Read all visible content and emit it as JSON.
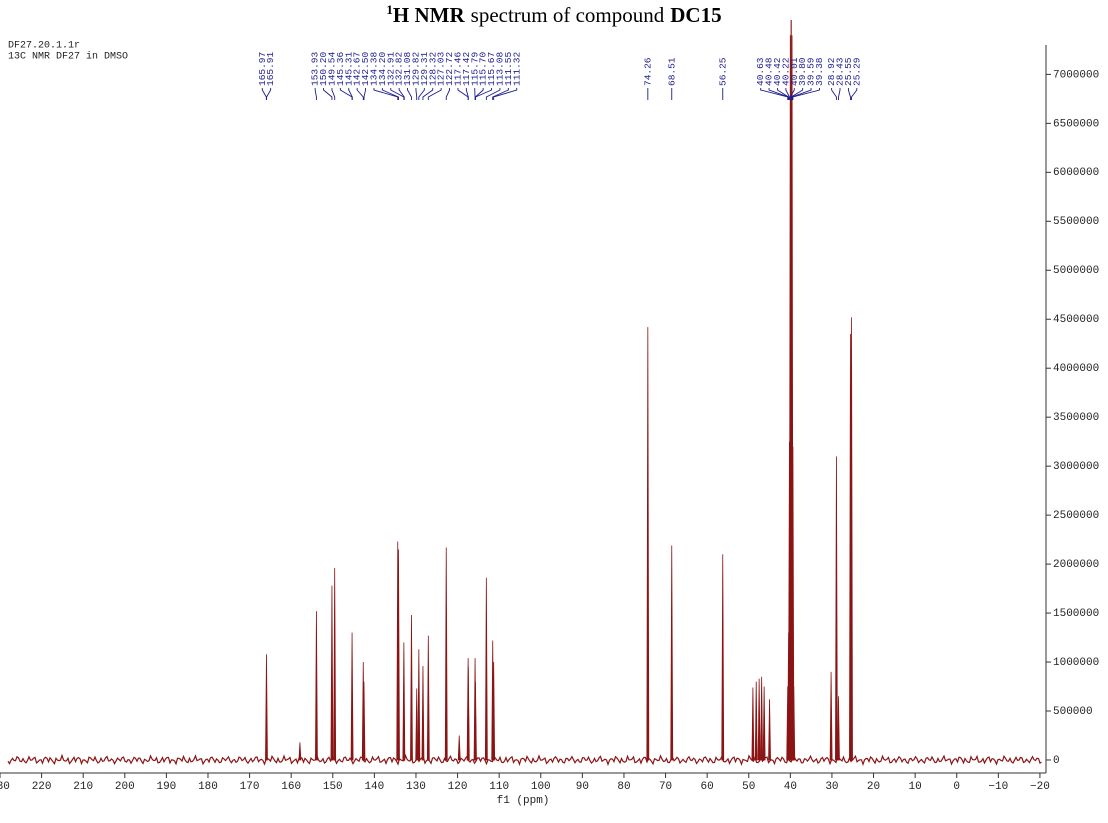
{
  "chart_data": {
    "type": "nmr",
    "title_parts": [
      "1",
      "H NMR",
      "spectrum of compound",
      "DC15"
    ],
    "header": [
      "DF27.20.1.1r",
      "13C NMR DF27 in DMSO"
    ],
    "xlabel": "f1 (ppm)",
    "color": "#8b1414",
    "label_color": "#1c1c8c",
    "xlim": [
      230,
      -20.5
    ],
    "ylim": [
      -133000,
      7300000
    ],
    "xticks": [
      230,
      220,
      210,
      200,
      190,
      180,
      170,
      160,
      150,
      140,
      130,
      120,
      110,
      100,
      90,
      80,
      70,
      60,
      50,
      40,
      30,
      20,
      10,
      0,
      {
        "value": -10,
        "label": "−10"
      },
      {
        "value": -20,
        "label": "−20"
      }
    ],
    "yticks": [
      0,
      500000,
      1000000,
      1500000,
      2000000,
      2500000,
      3000000,
      3500000,
      4000000,
      4500000,
      5000000,
      5500000,
      6000000,
      6500000,
      7000000
    ],
    "peak_labels": [
      {
        "value": 165.97,
        "label": "165.97"
      },
      {
        "value": 165.91,
        "label": "165.91"
      },
      {
        "value": 153.93,
        "label": "153.93"
      },
      {
        "value": 150.2,
        "label": "150.20"
      },
      {
        "value": 149.54,
        "label": "149.54"
      },
      {
        "value": 145.36,
        "label": "145.36"
      },
      {
        "value": 145.31,
        "label": "145.31"
      },
      {
        "value": 142.67,
        "label": "142.67"
      },
      {
        "value": 142.5,
        "label": "142.50"
      },
      {
        "value": 134.38,
        "label": "134.38"
      },
      {
        "value": 134.2,
        "label": "134.20"
      },
      {
        "value": 132.91,
        "label": "132.91"
      },
      {
        "value": 132.82,
        "label": "132.82"
      },
      {
        "value": 131.08,
        "label": "131.08"
      },
      {
        "value": 129.82,
        "label": "129.82"
      },
      {
        "value": 129.31,
        "label": "129.31"
      },
      {
        "value": 128.32,
        "label": "128.32"
      },
      {
        "value": 127.03,
        "label": "127.03"
      },
      {
        "value": 122.72,
        "label": "122.72"
      },
      {
        "value": 117.46,
        "label": "117.46"
      },
      {
        "value": 117.42,
        "label": "117.42"
      },
      {
        "value": 115.79,
        "label": "115.79"
      },
      {
        "value": 115.7,
        "label": "115.70"
      },
      {
        "value": 115.67,
        "label": "115.67"
      },
      {
        "value": 113.08,
        "label": "113.08"
      },
      {
        "value": 111.55,
        "label": "111.55"
      },
      {
        "value": 111.32,
        "label": "111.32"
      },
      {
        "value": 74.26,
        "label": "74.26"
      },
      {
        "value": 68.51,
        "label": "68.51"
      },
      {
        "value": 56.25,
        "label": "56.25"
      },
      {
        "value": 40.63,
        "label": "40.63"
      },
      {
        "value": 40.48,
        "label": "40.48"
      },
      {
        "value": 40.42,
        "label": "40.42"
      },
      {
        "value": 40.22,
        "label": "40.22"
      },
      {
        "value": 40.01,
        "label": "40.01"
      },
      {
        "value": 39.8,
        "label": "39.80"
      },
      {
        "value": 39.59,
        "label": "39.59"
      },
      {
        "value": 39.38,
        "label": "39.38"
      },
      {
        "value": 28.92,
        "label": "28.92"
      },
      {
        "value": 28.43,
        "label": "28.43"
      },
      {
        "value": 25.55,
        "label": "25.55"
      },
      {
        "value": 25.29,
        "label": "25.29"
      }
    ],
    "peaks": {
      "x": [
        165.94,
        157.9,
        153.93,
        150.2,
        149.54,
        145.36,
        142.67,
        142.5,
        134.38,
        134.2,
        132.91,
        131.08,
        129.82,
        129.31,
        128.32,
        127.03,
        122.72,
        119.6,
        117.46,
        117.42,
        115.79,
        115.7,
        113.08,
        111.55,
        111.32,
        74.26,
        68.51,
        56.25,
        49.0,
        48.2,
        47.5,
        46.9,
        46.3,
        45.0,
        40.63,
        40.42,
        40.22,
        40.01,
        39.8,
        39.59,
        39.38,
        39.17,
        30.2,
        28.92,
        28.43,
        25.55,
        25.29
      ],
      "values": [
        1080000,
        180000,
        1520000,
        1780000,
        1960000,
        1300000,
        1000000,
        800000,
        2230000,
        2150000,
        1200000,
        1480000,
        730000,
        1130000,
        960000,
        1270000,
        2170000,
        250000,
        1040000,
        950000,
        1040000,
        800000,
        1860000,
        1220000,
        1000000,
        4420000,
        2190000,
        2100000,
        740000,
        800000,
        830000,
        850000,
        750000,
        620000,
        750000,
        1300000,
        3250000,
        7400000,
        9000000,
        7400000,
        3200000,
        750000,
        900000,
        3100000,
        650000,
        4350000,
        4520000
      ]
    }
  }
}
